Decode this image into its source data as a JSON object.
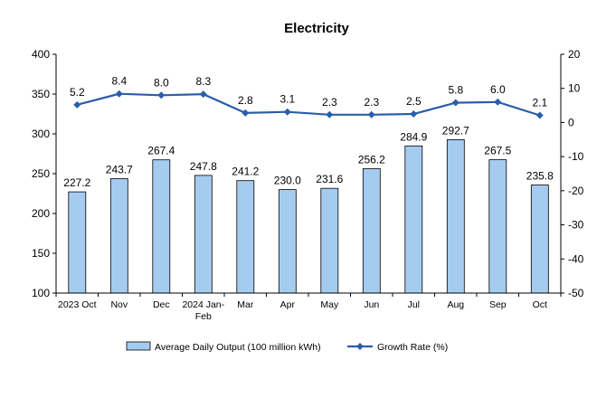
{
  "chart_data": {
    "type": "bar",
    "title": "Electricity",
    "categories": [
      "2023 Oct",
      "Nov",
      "Dec",
      "2024 Jan-Feb",
      "Mar",
      "Apr",
      "May",
      "Jun",
      "Jul",
      "Aug",
      "Sep",
      "Oct"
    ],
    "category_lines": [
      [
        "2023 Oct"
      ],
      [
        "Nov"
      ],
      [
        "Dec"
      ],
      [
        "2024 Jan-",
        "Feb"
      ],
      [
        "Mar"
      ],
      [
        "Apr"
      ],
      [
        "May"
      ],
      [
        "Jun"
      ],
      [
        "Jul"
      ],
      [
        "Aug"
      ],
      [
        "Sep"
      ],
      [
        "Oct"
      ]
    ],
    "series": [
      {
        "name": "Average Daily Output (100 million kWh)",
        "type": "bar",
        "axis": "left",
        "color": "#a6cbf0",
        "values": [
          227.2,
          243.7,
          267.4,
          247.8,
          241.2,
          230.0,
          231.6,
          256.2,
          284.9,
          292.7,
          267.5,
          235.8
        ],
        "labels": [
          "227.2",
          "243.7",
          "267.4",
          "247.8",
          "241.2",
          "230.0",
          "231.6",
          "256.2",
          "284.9",
          "292.7",
          "267.5",
          "235.8"
        ]
      },
      {
        "name": "Growth Rate (%)",
        "type": "line",
        "axis": "right",
        "color": "#2a5ea8",
        "values": [
          5.2,
          8.4,
          8.0,
          8.3,
          2.8,
          3.1,
          2.3,
          2.3,
          2.5,
          5.8,
          6.0,
          2.1
        ],
        "labels": [
          "5.2",
          "8.4",
          "8.0",
          "8.3",
          "2.8",
          "3.1",
          "2.3",
          "2.3",
          "2.5",
          "5.8",
          "6.0",
          "2.1"
        ]
      }
    ],
    "y_left": {
      "min": 100,
      "max": 400,
      "step": 50
    },
    "y_right": {
      "min": -50,
      "max": 20,
      "step": 10
    },
    "grid": false,
    "legend_position": "bottom"
  }
}
